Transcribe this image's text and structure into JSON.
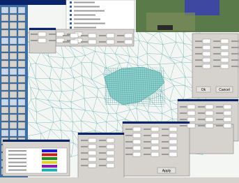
{
  "dialog_right": {
    "buttons": [
      "Ok",
      "Cancel"
    ]
  },
  "dialog_bottom": {
    "buttons": [
      "Apply"
    ]
  }
}
